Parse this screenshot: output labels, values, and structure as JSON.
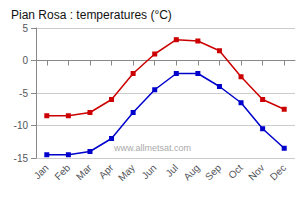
{
  "chart_data": {
    "type": "line",
    "title": "Pian Rosa : temperatures (°C)",
    "categories": [
      "Jan",
      "Feb",
      "Mar",
      "Apr",
      "May",
      "Jun",
      "Jul",
      "Aug",
      "Sep",
      "Oct",
      "Nov",
      "Dec"
    ],
    "series": [
      {
        "color": "#cc0000",
        "marker": "square",
        "values": [
          -8.5,
          -8.5,
          -8.0,
          -6.0,
          -2.0,
          1.0,
          3.2,
          3.0,
          1.5,
          -2.5,
          -6.0,
          -7.5
        ]
      },
      {
        "color": "#0000cc",
        "marker": "square",
        "values": [
          -14.5,
          -14.5,
          -14.0,
          -12.0,
          -8.0,
          -4.5,
          -2.0,
          -2.0,
          -4.0,
          -6.5,
          -10.5,
          -13.5
        ]
      }
    ],
    "ylim": [
      -15,
      5
    ],
    "yticks": [
      -15,
      -10,
      -5,
      0,
      5
    ],
    "grid": true,
    "annotations": [
      "www.allmetsat.com"
    ]
  }
}
